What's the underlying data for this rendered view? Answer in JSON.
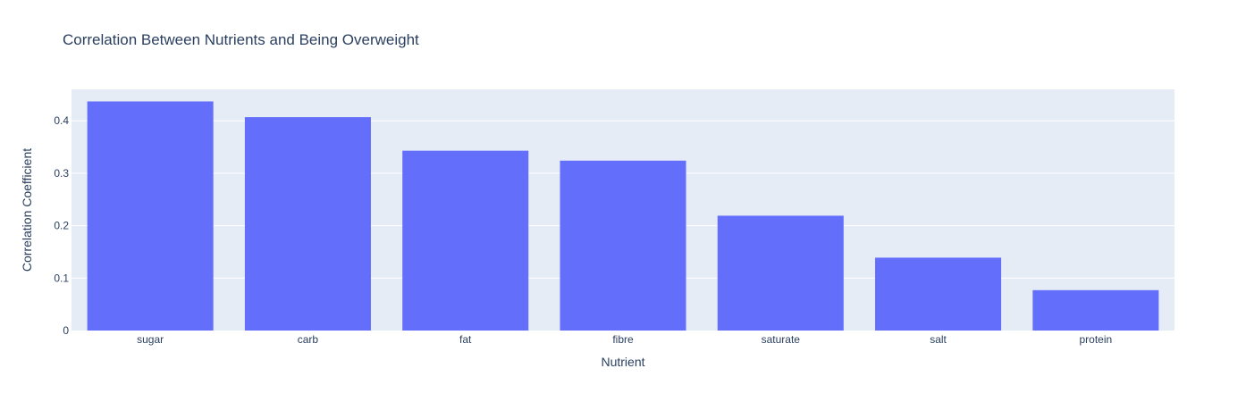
{
  "chart_data": {
    "type": "bar",
    "title": "Correlation Between Nutrients and Being Overweight",
    "xlabel": "Nutrient",
    "ylabel": "Correlation Coefficient",
    "categories": [
      "sugar",
      "carb",
      "fat",
      "fibre",
      "saturate",
      "salt",
      "protein"
    ],
    "values": [
      0.437,
      0.407,
      0.343,
      0.324,
      0.219,
      0.139,
      0.077
    ],
    "ylim": [
      0,
      0.46
    ],
    "yticks": [
      0,
      0.1,
      0.2,
      0.3,
      0.4
    ],
    "ytick_labels": [
      "0",
      "0.1",
      "0.2",
      "0.3",
      "0.4"
    ],
    "grid": true,
    "legend": "none",
    "colors": {
      "bar": "#636efa",
      "plot_background": "#e5ecf6",
      "gridline": "#ffffff",
      "text": "#2a3f5f"
    }
  }
}
